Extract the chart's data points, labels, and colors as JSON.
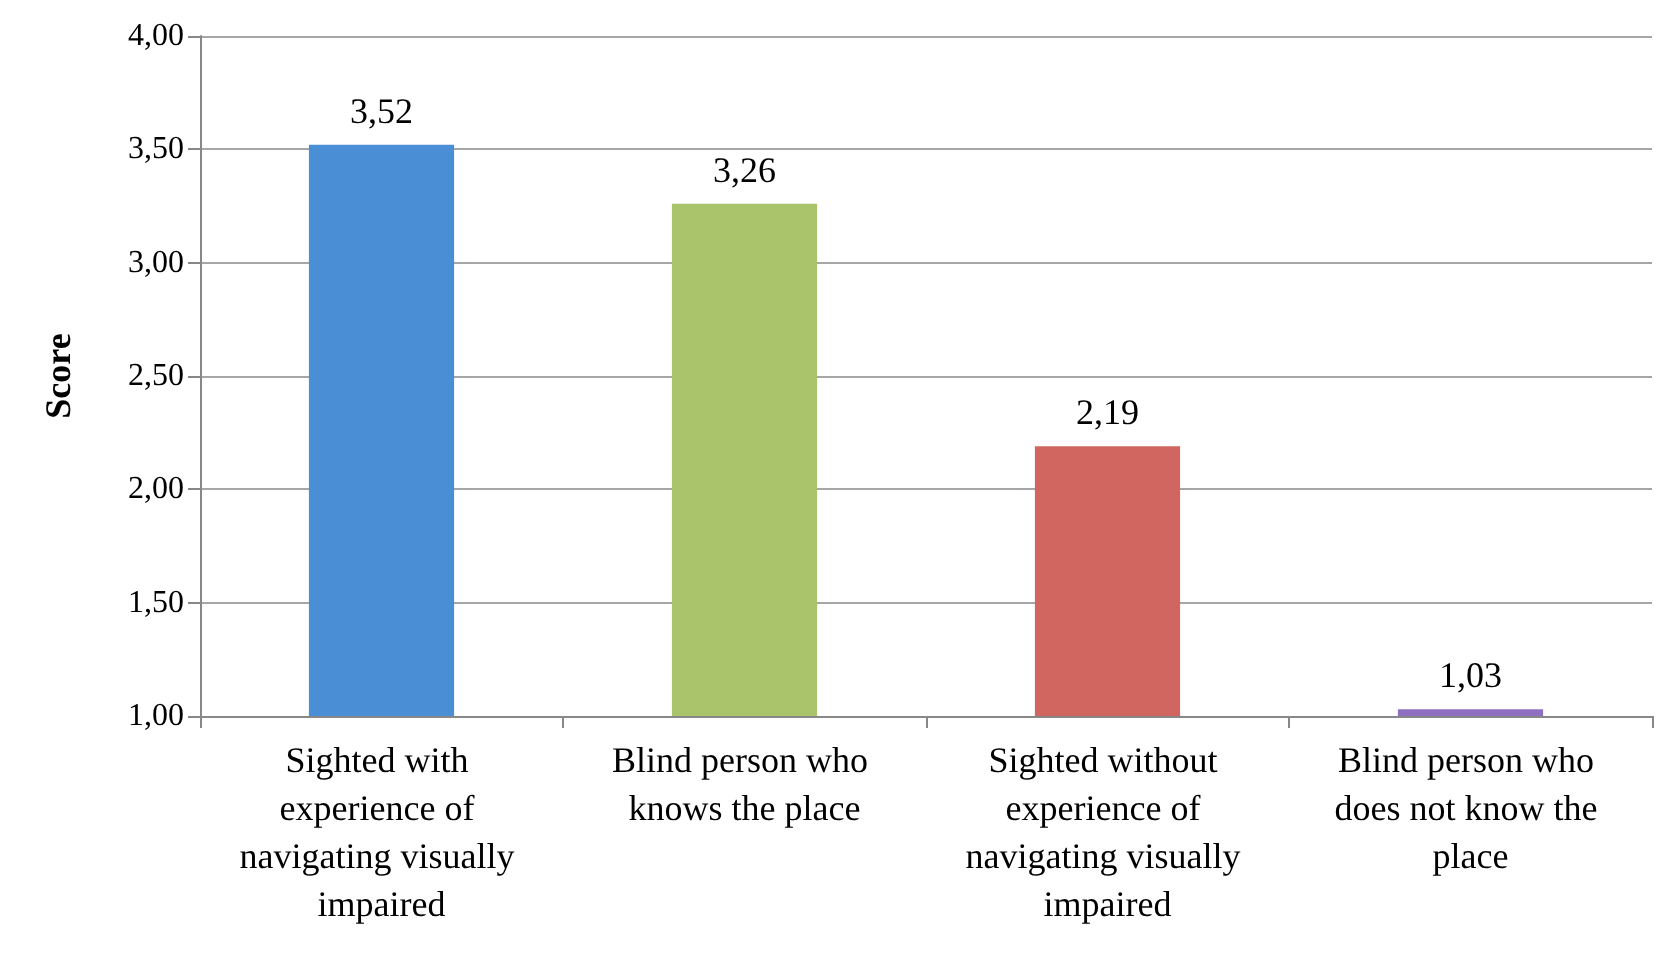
{
  "chart_data": {
    "type": "bar",
    "ylabel": "Score",
    "categories": [
      "Sighted with experience of navigating visually impaired",
      "Blind person who knows the place",
      "Sighted without experience of navigating visually impaired",
      "Blind person who does not know the place"
    ],
    "values": [
      3.52,
      3.26,
      2.19,
      1.03
    ],
    "colors": [
      "#4a8fd6",
      "#a9c46b",
      "#d0665f",
      "#8e6fc0"
    ],
    "value_labels": [
      "3,52",
      "3,26",
      "2,19",
      "1,03"
    ],
    "ylim": [
      1,
      4
    ],
    "yticks": [
      {
        "value": 1,
        "label": "1,00"
      },
      {
        "value": 1.5,
        "label": "1,50"
      },
      {
        "value": 2,
        "label": "2,00"
      },
      {
        "value": 2.5,
        "label": "2,50"
      },
      {
        "value": 3,
        "label": "3,00"
      },
      {
        "value": 3.5,
        "label": "3,50"
      },
      {
        "value": 4,
        "label": "4,00"
      }
    ],
    "grid": "y"
  }
}
